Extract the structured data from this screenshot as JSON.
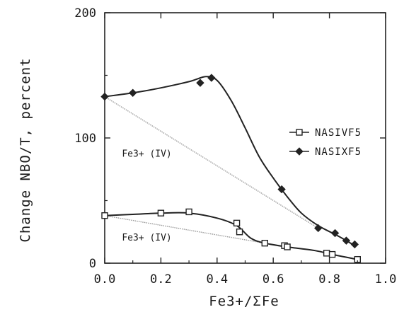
{
  "chart_data": {
    "type": "line",
    "xlabel": "Fe3+/ΣFe",
    "ylabel": "Change NBO/T, percent",
    "xlim": [
      0.0,
      1.0
    ],
    "ylim": [
      0,
      200
    ],
    "x_ticks": [
      "0.0",
      "0.2",
      "0.4",
      "0.6",
      "0.8",
      "1.0"
    ],
    "y_ticks": [
      "0",
      "100",
      "200"
    ],
    "legend_position": "right",
    "series": [
      {
        "name": "NASIVF5",
        "marker": "open-square",
        "color": "#222222",
        "points": [
          {
            "x": 0.0,
            "y": 38
          },
          {
            "x": 0.2,
            "y": 40
          },
          {
            "x": 0.3,
            "y": 41
          },
          {
            "x": 0.47,
            "y": 32
          },
          {
            "x": 0.48,
            "y": 25
          },
          {
            "x": 0.57,
            "y": 16
          },
          {
            "x": 0.64,
            "y": 14
          },
          {
            "x": 0.65,
            "y": 13
          },
          {
            "x": 0.79,
            "y": 8
          },
          {
            "x": 0.81,
            "y": 7
          },
          {
            "x": 0.9,
            "y": 3
          }
        ],
        "curve": [
          [
            0.0,
            38
          ],
          [
            0.1,
            39
          ],
          [
            0.2,
            40
          ],
          [
            0.3,
            40
          ],
          [
            0.4,
            36
          ],
          [
            0.47,
            30
          ],
          [
            0.52,
            20
          ],
          [
            0.57,
            16
          ],
          [
            0.65,
            13
          ],
          [
            0.75,
            10
          ],
          [
            0.81,
            7
          ],
          [
            0.9,
            3
          ]
        ]
      },
      {
        "name": "NASIXF5",
        "marker": "filled-diamond",
        "color": "#222222",
        "points": [
          {
            "x": 0.0,
            "y": 133
          },
          {
            "x": 0.1,
            "y": 136
          },
          {
            "x": 0.34,
            "y": 144
          },
          {
            "x": 0.38,
            "y": 148
          },
          {
            "x": 0.63,
            "y": 59
          },
          {
            "x": 0.76,
            "y": 28
          },
          {
            "x": 0.82,
            "y": 24
          },
          {
            "x": 0.86,
            "y": 18
          },
          {
            "x": 0.89,
            "y": 15
          }
        ],
        "curve": [
          [
            0.0,
            133
          ],
          [
            0.1,
            136
          ],
          [
            0.2,
            140
          ],
          [
            0.3,
            145
          ],
          [
            0.36,
            149
          ],
          [
            0.4,
            146
          ],
          [
            0.45,
            130
          ],
          [
            0.5,
            108
          ],
          [
            0.55,
            85
          ],
          [
            0.6,
            68
          ],
          [
            0.65,
            53
          ],
          [
            0.7,
            40
          ],
          [
            0.76,
            30
          ],
          [
            0.82,
            23
          ],
          [
            0.86,
            18
          ],
          [
            0.89,
            14
          ]
        ]
      }
    ],
    "reference_lines": [
      {
        "label": "Fe3+(IV)",
        "from": [
          0.0,
          133
        ],
        "to": [
          0.76,
          28
        ]
      },
      {
        "label": "Fe3+(IV)",
        "from": [
          0.0,
          38
        ],
        "to": [
          0.57,
          16
        ]
      }
    ],
    "annotations": [
      {
        "text": "Fe3+ (IV)",
        "x": 0.15,
        "y": 85
      },
      {
        "text": "Fe3+ (IV)",
        "x": 0.15,
        "y": 18
      }
    ]
  }
}
